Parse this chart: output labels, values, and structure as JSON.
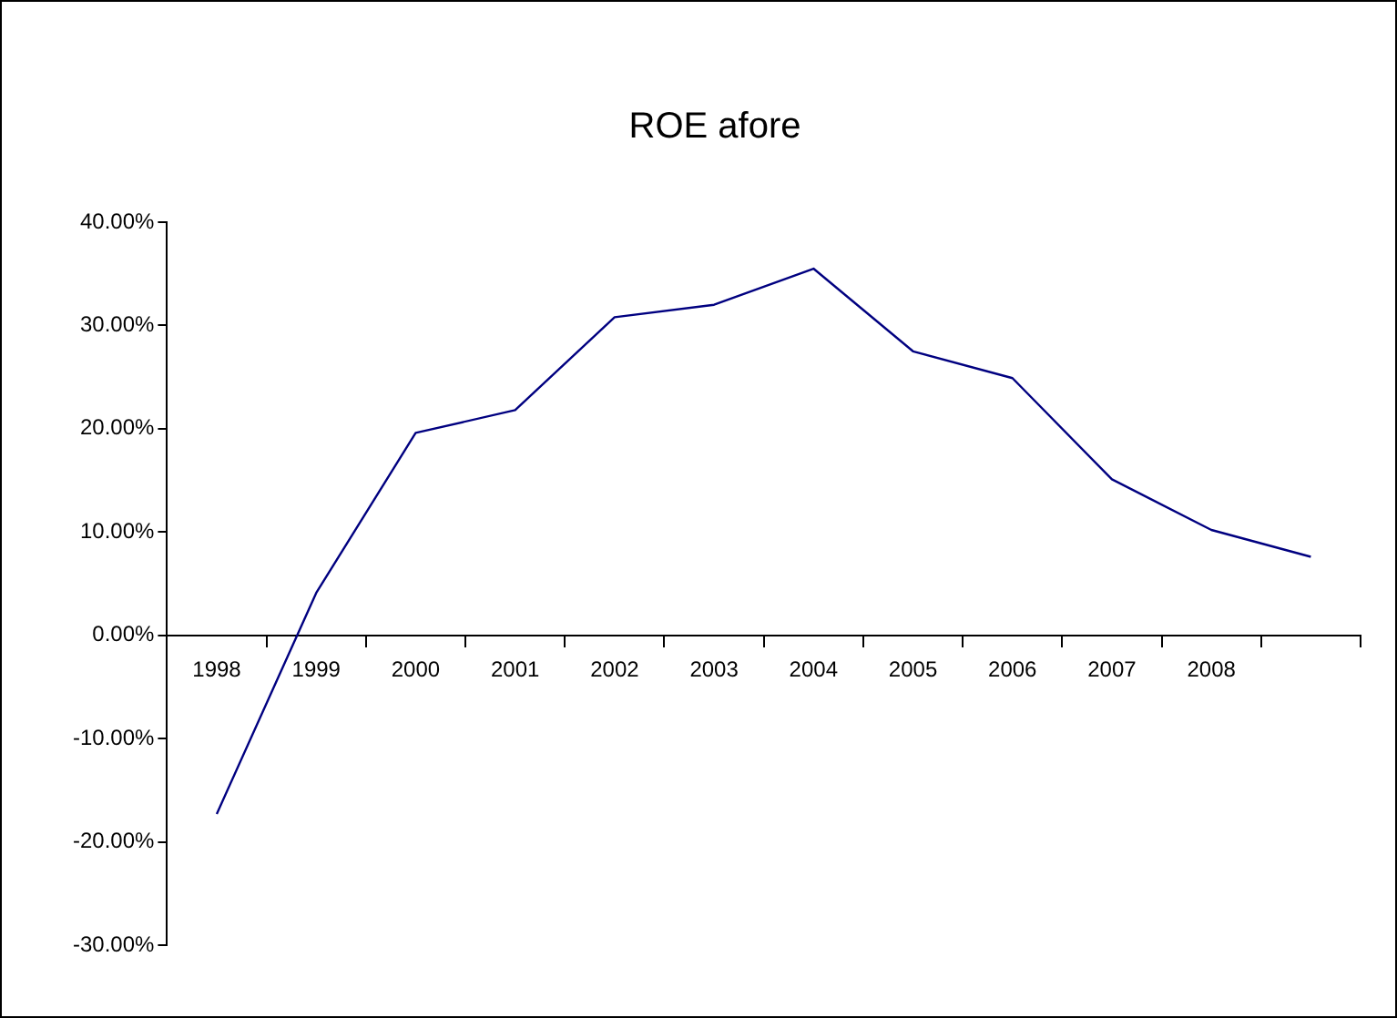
{
  "chart_data": {
    "type": "line",
    "title": "ROE afore",
    "categories": [
      "1998",
      "1999",
      "2000",
      "2001",
      "2002",
      "2003",
      "2004",
      "2005",
      "2006",
      "2007",
      "2008",
      null
    ],
    "series": [
      {
        "color": "#000080",
        "values": [
          -17.3,
          4.1,
          19.6,
          21.8,
          30.8,
          32.0,
          35.5,
          27.5,
          24.9,
          15.1,
          10.2,
          7.6
        ]
      }
    ],
    "ylim": [
      -30,
      40
    ],
    "yticks": [
      {
        "value": -30,
        "label": "-30.00%"
      },
      {
        "value": -20,
        "label": "-20.00%"
      },
      {
        "value": -10,
        "label": "-10.00%"
      },
      {
        "value": 0,
        "label": "0.00%"
      },
      {
        "value": 10,
        "label": "10.00%"
      },
      {
        "value": 20,
        "label": "20.00%"
      },
      {
        "value": 30,
        "label": "30.00%"
      },
      {
        "value": 40,
        "label": "40.00%"
      }
    ],
    "grid": false,
    "legend": false,
    "marker": "none",
    "line_style": "solid"
  }
}
